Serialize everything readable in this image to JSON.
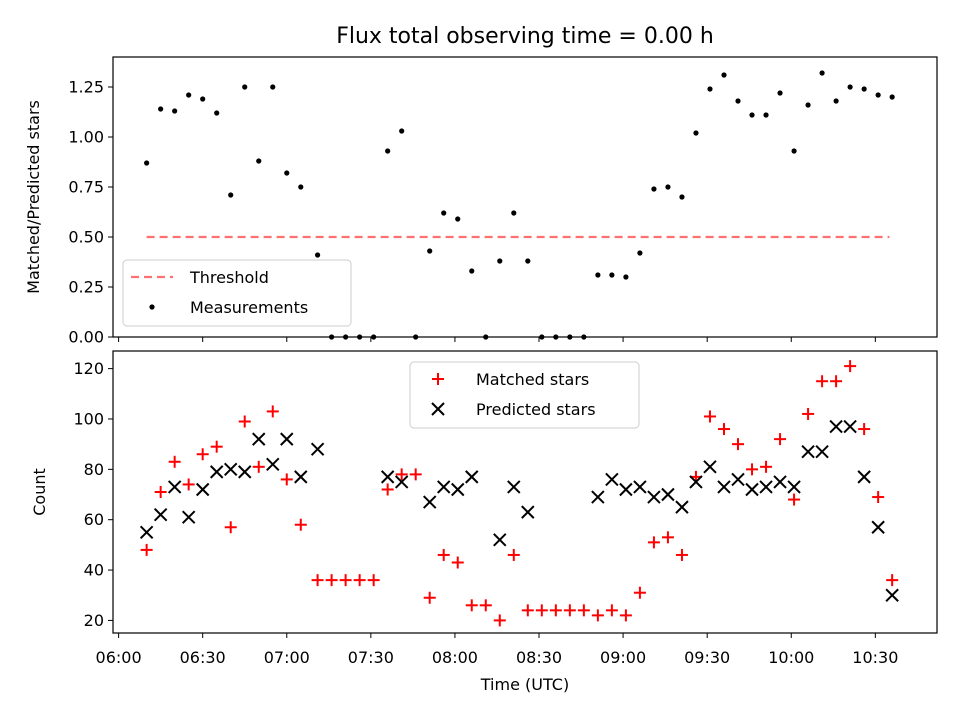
{
  "figure": {
    "title": "Flux total observing time = 0.00 h",
    "xlabel": "Time (UTC)"
  },
  "colors": {
    "threshold": "#ff7070",
    "measurement": "#000000",
    "matched": "#ff0000",
    "predicted": "#000000"
  },
  "chart_data": [
    {
      "type": "scatter",
      "panel": "top",
      "ylabel": "Matched/Predicted stars",
      "ylim": [
        0,
        1.4
      ],
      "yticks": [
        0.0,
        0.25,
        0.5,
        0.75,
        1.0,
        1.25
      ],
      "ytick_labels": [
        "0.00",
        "0.25",
        "0.50",
        "0.75",
        "1.00",
        "1.25"
      ],
      "xlim": [
        "05:58",
        "10:52"
      ],
      "legend": "bottom-left",
      "threshold": {
        "name": "Threshold",
        "value": 0.5,
        "x_range": [
          "06:10",
          "10:35"
        ]
      },
      "series": [
        {
          "name": "Measurements",
          "x": [
            "06:10",
            "06:15",
            "06:20",
            "06:25",
            "06:30",
            "06:35",
            "06:40",
            "06:45",
            "06:50",
            "06:55",
            "07:00",
            "07:05",
            "07:11",
            "07:16",
            "07:21",
            "07:26",
            "07:31",
            "07:36",
            "07:41",
            "07:46",
            "07:51",
            "07:56",
            "08:01",
            "08:06",
            "08:11",
            "08:16",
            "08:21",
            "08:26",
            "08:31",
            "08:36",
            "08:41",
            "08:46",
            "08:51",
            "08:56",
            "09:01",
            "09:06",
            "09:11",
            "09:16",
            "09:21",
            "09:26",
            "09:31",
            "09:36",
            "09:41",
            "09:46",
            "09:51",
            "09:56",
            "10:01",
            "10:06",
            "10:11",
            "10:16",
            "10:21",
            "10:26",
            "10:31",
            "10:36"
          ],
          "values": [
            0.87,
            1.14,
            1.13,
            1.21,
            1.19,
            1.12,
            0.71,
            1.25,
            0.88,
            1.25,
            0.82,
            0.75,
            0.41,
            0.0,
            0.0,
            0.0,
            0.0,
            0.93,
            1.03,
            0.0,
            0.43,
            0.62,
            0.59,
            0.33,
            0.0,
            0.38,
            0.62,
            0.38,
            0.0,
            0.0,
            0.0,
            0.0,
            0.31,
            0.31,
            0.3,
            0.42,
            0.74,
            0.75,
            0.7,
            1.02,
            1.24,
            1.31,
            1.18,
            1.11,
            1.11,
            1.22,
            0.93,
            1.16,
            1.32,
            1.18,
            1.25,
            1.24,
            1.21,
            1.2
          ]
        }
      ]
    },
    {
      "type": "scatter",
      "panel": "bottom",
      "ylabel": "Count",
      "ylim": [
        15,
        127
      ],
      "yticks": [
        20,
        40,
        60,
        80,
        100,
        120
      ],
      "ytick_labels": [
        "20",
        "40",
        "60",
        "80",
        "100",
        "120"
      ],
      "xlim": [
        "05:58",
        "10:52"
      ],
      "xticks": [
        "06:00",
        "06:30",
        "07:00",
        "07:30",
        "08:00",
        "08:30",
        "09:00",
        "09:30",
        "10:00",
        "10:30"
      ],
      "xtick_labels": [
        "06:00",
        "06:30",
        "07:00",
        "07:30",
        "08:00",
        "08:30",
        "09:00",
        "09:30",
        "10:00",
        "10:30"
      ],
      "legend": "top-center",
      "series": [
        {
          "name": "Matched stars",
          "x": [
            "06:10",
            "06:15",
            "06:20",
            "06:25",
            "06:30",
            "06:35",
            "06:40",
            "06:45",
            "06:50",
            "06:55",
            "07:00",
            "07:05",
            "07:11",
            "07:16",
            "07:21",
            "07:26",
            "07:31",
            "07:36",
            "07:41",
            "07:46",
            "07:51",
            "07:56",
            "08:01",
            "08:06",
            "08:11",
            "08:16",
            "08:21",
            "08:26",
            "08:31",
            "08:36",
            "08:41",
            "08:46",
            "08:51",
            "08:56",
            "09:01",
            "09:06",
            "09:11",
            "09:16",
            "09:21",
            "09:26",
            "09:31",
            "09:36",
            "09:41",
            "09:46",
            "09:51",
            "09:56",
            "10:01",
            "10:06",
            "10:11",
            "10:16",
            "10:21",
            "10:26",
            "10:31",
            "10:36"
          ],
          "values": [
            48,
            71,
            83,
            74,
            86,
            89,
            57,
            99,
            81,
            103,
            76,
            58,
            36,
            36,
            36,
            36,
            36,
            72,
            78,
            78,
            29,
            46,
            43,
            26,
            26,
            20,
            46,
            24,
            24,
            24,
            24,
            24,
            22,
            24,
            22,
            31,
            51,
            53,
            46,
            77,
            101,
            96,
            90,
            80,
            81,
            92,
            68,
            102,
            115,
            115,
            121,
            96,
            69,
            36
          ]
        },
        {
          "name": "Predicted stars",
          "x": [
            "06:10",
            "06:15",
            "06:20",
            "06:25",
            "06:30",
            "06:35",
            "06:40",
            "06:45",
            "06:50",
            "06:55",
            "07:00",
            "07:05",
            "07:11",
            "07:36",
            "07:41",
            "07:51",
            "07:56",
            "08:01",
            "08:06",
            "08:16",
            "08:21",
            "08:26",
            "08:51",
            "08:56",
            "09:01",
            "09:06",
            "09:11",
            "09:16",
            "09:21",
            "09:26",
            "09:31",
            "09:36",
            "09:41",
            "09:46",
            "09:51",
            "09:56",
            "10:01",
            "10:06",
            "10:11",
            "10:16",
            "10:21",
            "10:26",
            "10:31",
            "10:36"
          ],
          "values": [
            55,
            62,
            73,
            61,
            72,
            79,
            80,
            79,
            92,
            82,
            92,
            77,
            88,
            77,
            75,
            67,
            73,
            72,
            77,
            52,
            73,
            63,
            69,
            76,
            72,
            73,
            69,
            70,
            65,
            75,
            81,
            73,
            76,
            72,
            73,
            75,
            73,
            87,
            87,
            97,
            97,
            77,
            57,
            30
          ]
        }
      ]
    }
  ]
}
